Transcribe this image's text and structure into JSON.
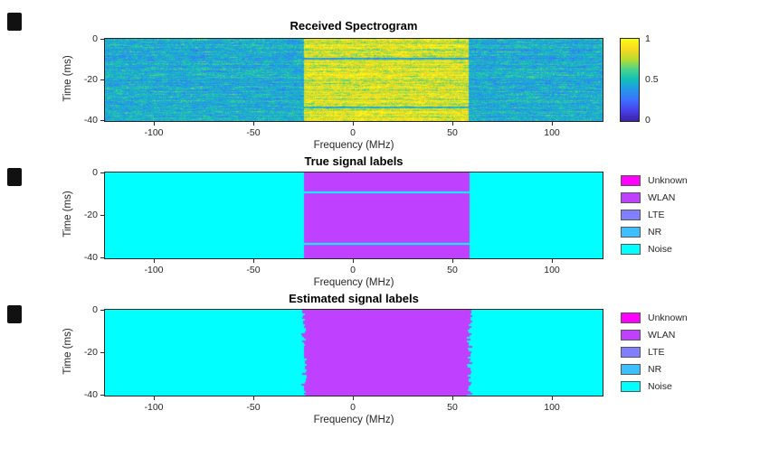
{
  "figure": {
    "background": "#FFFFFF",
    "left_markers_count": 3,
    "left_markers_color": "#111111"
  },
  "subplots": [
    {
      "title": "Received Spectrogram",
      "xlabel": "Frequency (MHz)",
      "ylabel": "Time (ms)"
    },
    {
      "title": "True signal labels",
      "xlabel": "Frequency (MHz)",
      "ylabel": "Time (ms)"
    },
    {
      "title": "Estimated signal labels",
      "xlabel": "Frequency (MHz)",
      "ylabel": "Time (ms)"
    }
  ],
  "ticks": {
    "x": [
      "-100",
      "-50",
      "0",
      "50",
      "100"
    ],
    "y": [
      "0",
      "-20",
      "-40"
    ]
  },
  "colorbar": {
    "ticks": [
      "1",
      "0.5",
      "0"
    ]
  },
  "legend": {
    "items": [
      {
        "label": "Unknown",
        "color": "#FF00FF"
      },
      {
        "label": "WLAN",
        "color": "#BF40FF"
      },
      {
        "label": "LTE",
        "color": "#8080FF"
      },
      {
        "label": "NR",
        "color": "#40BFFF"
      },
      {
        "label": "Noise",
        "color": "#00FFFF"
      }
    ]
  },
  "chart_data": [
    {
      "type": "heatmap",
      "title": "Received Spectrogram",
      "xlabel": "Frequency (MHz)",
      "ylabel": "Time (ms)",
      "x_range": [
        -125,
        125
      ],
      "y_range": [
        -40,
        0
      ],
      "x_ticks": [
        -100,
        -50,
        0,
        50,
        100
      ],
      "y_ticks": [
        0,
        -20,
        -40
      ],
      "colormap": "parula",
      "colorbar_range": [
        0,
        1
      ],
      "colorbar_ticks": [
        1,
        0.5,
        0
      ],
      "noise_floor_level": 0.45,
      "signals": [
        {
          "name": "WLAN",
          "freq_range_mhz": [
            -25,
            58
          ],
          "time_range_ms": [
            0,
            -40
          ],
          "level": 0.82
        }
      ],
      "frame_gaps_ms": [
        [
          -9,
          -9.8
        ],
        [
          -33,
          -33.8
        ]
      ]
    },
    {
      "type": "heatmap",
      "subtype": "class-label-map",
      "title": "True signal labels",
      "xlabel": "Frequency (MHz)",
      "ylabel": "Time (ms)",
      "x_range": [
        -125,
        125
      ],
      "y_range": [
        -40,
        0
      ],
      "x_ticks": [
        -100,
        -50,
        0,
        50,
        100
      ],
      "y_ticks": [
        0,
        -20,
        -40
      ],
      "background_label": "Noise",
      "legend_position": "eastoutside",
      "classes": [
        {
          "label": "Unknown",
          "color": "#FF00FF"
        },
        {
          "label": "WLAN",
          "color": "#BF40FF"
        },
        {
          "label": "LTE",
          "color": "#8080FF"
        },
        {
          "label": "NR",
          "color": "#40BFFF"
        },
        {
          "label": "Noise",
          "color": "#00FFFF"
        }
      ],
      "regions": [
        {
          "label": "WLAN",
          "freq_range_mhz": [
            -25,
            58
          ],
          "time_range_ms": [
            0,
            -9
          ],
          "boundary": "straight"
        },
        {
          "label": "WLAN",
          "freq_range_mhz": [
            -25,
            58
          ],
          "time_range_ms": [
            -9.8,
            -33
          ],
          "boundary": "straight"
        },
        {
          "label": "WLAN",
          "freq_range_mhz": [
            -25,
            58
          ],
          "time_range_ms": [
            -33.8,
            -40
          ],
          "boundary": "straight"
        }
      ]
    },
    {
      "type": "heatmap",
      "subtype": "class-label-map",
      "title": "Estimated signal labels",
      "xlabel": "Frequency (MHz)",
      "ylabel": "Time (ms)",
      "x_range": [
        -125,
        125
      ],
      "y_range": [
        -40,
        0
      ],
      "x_ticks": [
        -100,
        -50,
        0,
        50,
        100
      ],
      "y_ticks": [
        0,
        -20,
        -40
      ],
      "background_label": "Noise",
      "legend_position": "eastoutside",
      "classes": [
        {
          "label": "Unknown",
          "color": "#FF00FF"
        },
        {
          "label": "WLAN",
          "color": "#BF40FF"
        },
        {
          "label": "LTE",
          "color": "#8080FF"
        },
        {
          "label": "NR",
          "color": "#40BFFF"
        },
        {
          "label": "Noise",
          "color": "#00FFFF"
        }
      ],
      "regions": [
        {
          "label": "WLAN",
          "freq_range_mhz": [
            -25,
            58
          ],
          "time_range_ms": [
            0,
            -40
          ],
          "boundary": "jagged"
        }
      ]
    }
  ]
}
